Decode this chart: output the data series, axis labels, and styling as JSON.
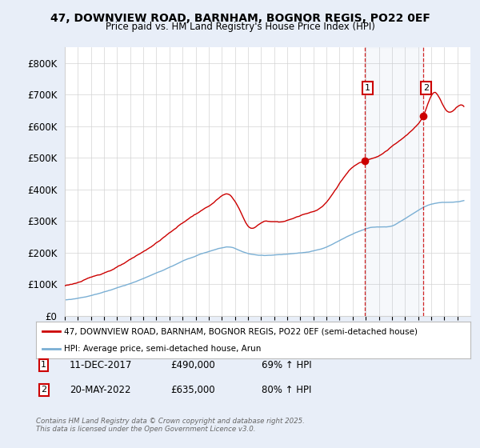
{
  "title1": "47, DOWNVIEW ROAD, BARNHAM, BOGNOR REGIS, PO22 0EF",
  "title2": "Price paid vs. HM Land Registry's House Price Index (HPI)",
  "ylim": [
    0,
    850000
  ],
  "yticks": [
    0,
    100000,
    200000,
    300000,
    400000,
    500000,
    600000,
    700000,
    800000
  ],
  "ytick_labels": [
    "£0",
    "£100K",
    "£200K",
    "£300K",
    "£400K",
    "£500K",
    "£600K",
    "£700K",
    "£800K"
  ],
  "background_color": "#e8eef8",
  "plot_bg": "#ffffff",
  "red_color": "#cc0000",
  "blue_color": "#7aafd4",
  "purchase1_date": 2017.94,
  "purchase1_price": 490000,
  "purchase1_label": "1",
  "purchase2_date": 2022.38,
  "purchase2_price": 635000,
  "purchase2_label": "2",
  "legend_line1": "47, DOWNVIEW ROAD, BARNHAM, BOGNOR REGIS, PO22 0EF (semi-detached house)",
  "legend_line2": "HPI: Average price, semi-detached house, Arun",
  "annotation1_date": "11-DEC-2017",
  "annotation1_price": "£490,000",
  "annotation1_hpi": "69% ↑ HPI",
  "annotation2_date": "20-MAY-2022",
  "annotation2_price": "£635,000",
  "annotation2_hpi": "80% ↑ HPI",
  "footer": "Contains HM Land Registry data © Crown copyright and database right 2025.\nThis data is licensed under the Open Government Licence v3.0.",
  "xmin": 1995,
  "xmax": 2026
}
